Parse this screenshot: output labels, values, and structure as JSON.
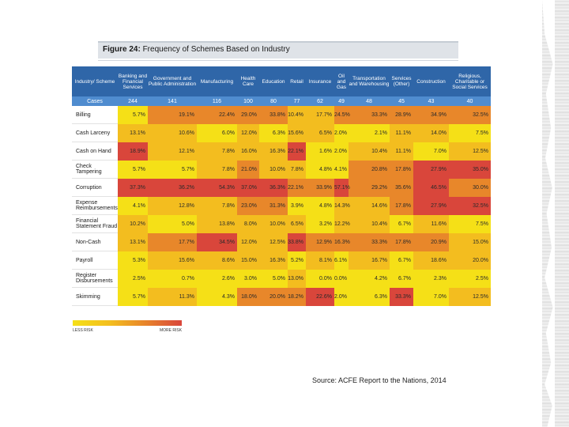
{
  "figure": {
    "label": "Figure 24:",
    "title": "Frequency of Schemes Based on Industry"
  },
  "legend": {
    "low": "LESS RISK",
    "high": "MORE RISK"
  },
  "source": "Source: ACFE Report to the Nations, 2014",
  "colors": {
    "header": "#2f66a8",
    "cases": "#4f8ccf",
    "yellow": "#f5e017",
    "gold": "#f3bd1f",
    "orange": "#e8872a",
    "red": "#d9463b"
  },
  "chart_data": {
    "type": "heatmap",
    "title": "Frequency of Schemes Based on Industry",
    "corner_label": "Industry/ Scheme",
    "cases_label": "Cases",
    "columns": [
      {
        "name": "Banking and Financial Services",
        "cases": "244"
      },
      {
        "name": "Government and Public Administration",
        "cases": "141"
      },
      {
        "name": "Manufacturing",
        "cases": "116"
      },
      {
        "name": "Health Care",
        "cases": "100"
      },
      {
        "name": "Education",
        "cases": "80"
      },
      {
        "name": "Retail",
        "cases": "77"
      },
      {
        "name": "Insurance",
        "cases": "62"
      },
      {
        "name": "Oil and Gas",
        "cases": "49"
      },
      {
        "name": "Transportation and Warehousing",
        "cases": "48"
      },
      {
        "name": "Services (Other)",
        "cases": "45"
      },
      {
        "name": "Construction",
        "cases": "43"
      },
      {
        "name": "Religious, Charitable or Social Services",
        "cases": "40"
      }
    ],
    "rows": [
      {
        "name": "Billing",
        "values": [
          "5.7%",
          "19.1%",
          "22.4%",
          "29.0%",
          "33.8%",
          "10.4%",
          "17.7%",
          "24.5%",
          "33.3%",
          "28.9%",
          "34.9%",
          "32.5%"
        ],
        "levels": [
          0,
          2,
          2,
          2,
          2,
          1,
          1,
          2,
          2,
          2,
          2,
          2
        ]
      },
      {
        "name": "Cash Larceny",
        "values": [
          "13.1%",
          "10.6%",
          "6.0%",
          "12.0%",
          "6.3%",
          "15.6%",
          "6.5%",
          "2.0%",
          "2.1%",
          "11.1%",
          "14.0%",
          "7.5%"
        ],
        "levels": [
          1,
          1,
          0,
          1,
          0,
          1,
          1,
          0,
          0,
          1,
          1,
          0
        ]
      },
      {
        "name": "Cash on Hand",
        "values": [
          "18.9%",
          "12.1%",
          "7.8%",
          "16.0%",
          "16.3%",
          "22.1%",
          "1.6%",
          "2.0%",
          "10.4%",
          "11.1%",
          "7.0%",
          "12.5%"
        ],
        "levels": [
          3,
          1,
          1,
          1,
          1,
          3,
          0,
          0,
          1,
          1,
          0,
          1
        ]
      },
      {
        "name": "Check Tampering",
        "values": [
          "5.7%",
          "5.7%",
          "7.8%",
          "21.0%",
          "10.0%",
          "7.8%",
          "4.8%",
          "4.1%",
          "20.8%",
          "17.8%",
          "27.9%",
          "35.0%"
        ],
        "levels": [
          0,
          0,
          1,
          2,
          1,
          1,
          0,
          0,
          2,
          2,
          3,
          3
        ]
      },
      {
        "name": "Corruption",
        "values": [
          "37.3%",
          "36.2%",
          "54.3%",
          "37.0%",
          "36.3%",
          "22.1%",
          "33.9%",
          "57.1%",
          "29.2%",
          "35.6%",
          "46.5%",
          "30.0%"
        ],
        "levels": [
          3,
          3,
          3,
          3,
          3,
          2,
          2,
          3,
          2,
          2,
          3,
          2
        ]
      },
      {
        "name": "Expense Reimbursements",
        "values": [
          "4.1%",
          "12.8%",
          "7.8%",
          "23.0%",
          "31.3%",
          "3.9%",
          "4.8%",
          "14.3%",
          "14.6%",
          "17.8%",
          "27.9%",
          "32.5%"
        ],
        "levels": [
          0,
          1,
          1,
          2,
          2,
          0,
          0,
          1,
          1,
          2,
          3,
          3
        ]
      },
      {
        "name": "Financial Statement Fraud",
        "values": [
          "10.2%",
          "5.0%",
          "13.8%",
          "8.0%",
          "10.0%",
          "6.5%",
          "3.2%",
          "12.2%",
          "10.4%",
          "6.7%",
          "11.6%",
          "7.5%"
        ],
        "levels": [
          1,
          0,
          1,
          1,
          1,
          1,
          0,
          1,
          1,
          0,
          1,
          0
        ]
      },
      {
        "name": "Non-Cash",
        "values": [
          "13.1%",
          "17.7%",
          "34.5%",
          "12.0%",
          "12.5%",
          "33.8%",
          "12.9%",
          "16.3%",
          "33.3%",
          "17.8%",
          "20.9%",
          "15.0%"
        ],
        "levels": [
          1,
          2,
          3,
          1,
          1,
          3,
          2,
          2,
          2,
          2,
          2,
          1
        ]
      },
      {
        "name": "Payroll",
        "values": [
          "5.3%",
          "15.6%",
          "8.6%",
          "15.0%",
          "16.3%",
          "5.2%",
          "8.1%",
          "6.1%",
          "16.7%",
          "6.7%",
          "18.6%",
          "20.0%"
        ],
        "levels": [
          0,
          1,
          1,
          1,
          1,
          0,
          1,
          0,
          1,
          0,
          1,
          1
        ]
      },
      {
        "name": "Register Disbursements",
        "values": [
          "2.5%",
          "0.7%",
          "2.6%",
          "3.0%",
          "5.0%",
          "13.0%",
          "0.0%",
          "0.0%",
          "4.2%",
          "6.7%",
          "2.3%",
          "2.5%"
        ],
        "levels": [
          0,
          0,
          0,
          0,
          0,
          1,
          0,
          0,
          0,
          0,
          0,
          0
        ]
      },
      {
        "name": "Skimming",
        "values": [
          "5.7%",
          "11.3%",
          "4.3%",
          "18.0%",
          "20.0%",
          "18.2%",
          "22.6%",
          "2.0%",
          "6.3%",
          "33.3%",
          "7.0%",
          "12.5%"
        ],
        "levels": [
          0,
          1,
          0,
          2,
          2,
          2,
          3,
          0,
          0,
          3,
          0,
          1
        ]
      }
    ]
  }
}
